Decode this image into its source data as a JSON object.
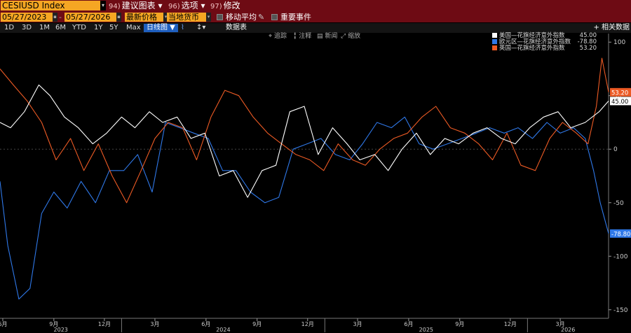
{
  "toolbar": {
    "ticker": "CESIUSD Index",
    "menu": [
      {
        "num": "94)",
        "label": "建议图表"
      },
      {
        "num": "96)",
        "label": "选项"
      },
      {
        "num": "97)",
        "label": "修改"
      }
    ],
    "start_date": "05/27/2023",
    "end_date": "05/27/2026",
    "price_field": "最新价格",
    "currency": "当地货币",
    "moving_avg": "移动平均",
    "key_events": "重要事件"
  },
  "timeframes": [
    "1D",
    "3D",
    "1M",
    "6M",
    "YTD",
    "1Y",
    "5Y",
    "Max"
  ],
  "chart_type": "日线图",
  "data_table": "数据表",
  "related_data": "相关数据",
  "annotations": [
    "追踪",
    "注释",
    "新闻",
    "缩放"
  ],
  "colors": {
    "us": "#ffffff",
    "eur": "#2f78e8",
    "uk": "#ec5a24",
    "ticker_bg": "#f5a623",
    "header_bg": "#6e0b14"
  },
  "chart_data": {
    "type": "line",
    "x_range": [
      "2023-05-27",
      "2026-05-27"
    ],
    "ylim": [
      -158,
      108
    ],
    "y_ticks": [
      100,
      50,
      0,
      -50,
      -100,
      -150
    ],
    "month_ticks": [
      "6月",
      "9月",
      "12月",
      "3月",
      "6月",
      "9月",
      "12月",
      "3月",
      "6月",
      "9月",
      "12月",
      "3月"
    ],
    "year_labels": [
      "2023",
      "2024",
      "2025",
      "2026"
    ],
    "legend_position": "top-right",
    "legend": [
      {
        "name": "美国—花旗经济意外指数",
        "value": "45.00"
      },
      {
        "name": "欧元区—花旗经济意外指数",
        "value": "-78.80"
      },
      {
        "name": "英国—花旗经济意外指数",
        "value": "53.20"
      }
    ],
    "series": [
      {
        "name": "美国—花旗经济意外指数",
        "last": 45.0,
        "x": [
          "2023-05-27",
          "2023-06-15",
          "2023-07-10",
          "2023-08-05",
          "2023-08-25",
          "2023-09-20",
          "2023-10-15",
          "2023-11-10",
          "2023-12-05",
          "2024-01-01",
          "2024-01-25",
          "2024-02-20",
          "2024-03-15",
          "2024-04-10",
          "2024-05-05",
          "2024-05-30",
          "2024-06-25",
          "2024-07-20",
          "2024-08-15",
          "2024-09-10",
          "2024-10-05",
          "2024-10-30",
          "2024-11-25",
          "2024-12-20",
          "2025-01-15",
          "2025-02-10",
          "2025-03-05",
          "2025-04-01",
          "2025-04-25",
          "2025-05-20",
          "2025-06-15",
          "2025-07-10",
          "2025-08-05",
          "2025-08-30",
          "2025-09-25",
          "2025-10-20",
          "2025-11-15",
          "2025-12-10",
          "2026-01-05",
          "2026-01-30",
          "2026-02-25",
          "2026-03-20",
          "2026-04-15",
          "2026-05-10",
          "2026-05-27"
        ],
        "y": [
          25,
          20,
          35,
          60,
          50,
          30,
          20,
          5,
          15,
          30,
          20,
          35,
          25,
          30,
          10,
          15,
          -25,
          -20,
          -45,
          -20,
          -15,
          35,
          40,
          -5,
          20,
          5,
          -10,
          -5,
          -20,
          0,
          15,
          -5,
          10,
          5,
          15,
          20,
          10,
          5,
          20,
          30,
          35,
          20,
          25,
          35,
          45
        ]
      },
      {
        "name": "欧元区—花旗经济意外指数",
        "last": -78.8,
        "x": [
          "2023-05-27",
          "2023-06-10",
          "2023-06-30",
          "2023-07-20",
          "2023-08-10",
          "2023-09-01",
          "2023-09-25",
          "2023-10-20",
          "2023-11-15",
          "2023-12-10",
          "2024-01-05",
          "2024-01-30",
          "2024-02-25",
          "2024-03-20",
          "2024-04-15",
          "2024-05-10",
          "2024-06-05",
          "2024-07-01",
          "2024-07-25",
          "2024-08-20",
          "2024-09-15",
          "2024-10-10",
          "2024-11-05",
          "2024-11-30",
          "2024-12-25",
          "2025-01-20",
          "2025-02-15",
          "2025-03-10",
          "2025-04-05",
          "2025-05-01",
          "2025-05-25",
          "2025-06-20",
          "2025-07-15",
          "2025-08-10",
          "2025-09-05",
          "2025-10-01",
          "2025-10-25",
          "2025-11-20",
          "2025-12-15",
          "2026-01-10",
          "2026-02-05",
          "2026-03-01",
          "2026-03-25",
          "2026-04-15",
          "2026-04-30",
          "2026-05-12",
          "2026-05-27"
        ],
        "y": [
          -30,
          -90,
          -140,
          -130,
          -60,
          -40,
          -55,
          -30,
          -50,
          -20,
          -20,
          -5,
          -40,
          25,
          20,
          15,
          10,
          -20,
          -20,
          -40,
          -50,
          -45,
          0,
          5,
          10,
          -5,
          -10,
          5,
          25,
          20,
          30,
          5,
          0,
          5,
          10,
          15,
          20,
          15,
          20,
          10,
          25,
          15,
          20,
          10,
          -20,
          -50,
          -78.8
        ]
      },
      {
        "name": "英国—花旗经济意外指数",
        "last": 53.2,
        "x": [
          "2023-05-27",
          "2023-06-20",
          "2023-07-15",
          "2023-08-10",
          "2023-09-05",
          "2023-10-01",
          "2023-10-25",
          "2023-11-20",
          "2023-12-15",
          "2024-01-10",
          "2024-02-05",
          "2024-03-01",
          "2024-03-25",
          "2024-04-20",
          "2024-05-15",
          "2024-06-10",
          "2024-07-05",
          "2024-07-30",
          "2024-08-25",
          "2024-09-20",
          "2024-10-15",
          "2024-11-10",
          "2024-12-05",
          "2024-12-30",
          "2025-01-25",
          "2025-02-20",
          "2025-03-15",
          "2025-04-10",
          "2025-05-05",
          "2025-05-30",
          "2025-06-25",
          "2025-07-20",
          "2025-08-15",
          "2025-09-10",
          "2025-10-05",
          "2025-10-30",
          "2025-11-25",
          "2025-12-20",
          "2026-01-15",
          "2026-02-10",
          "2026-03-05",
          "2026-03-30",
          "2026-04-20",
          "2026-05-05",
          "2026-05-15",
          "2026-05-27"
        ],
        "y": [
          75,
          60,
          45,
          25,
          -10,
          10,
          -20,
          5,
          -25,
          -50,
          -20,
          10,
          25,
          20,
          -10,
          30,
          55,
          50,
          30,
          15,
          5,
          -5,
          -10,
          -20,
          5,
          -10,
          -15,
          0,
          10,
          15,
          30,
          40,
          20,
          15,
          5,
          -10,
          15,
          -15,
          -20,
          10,
          25,
          15,
          5,
          40,
          85,
          53.2
        ]
      }
    ]
  }
}
